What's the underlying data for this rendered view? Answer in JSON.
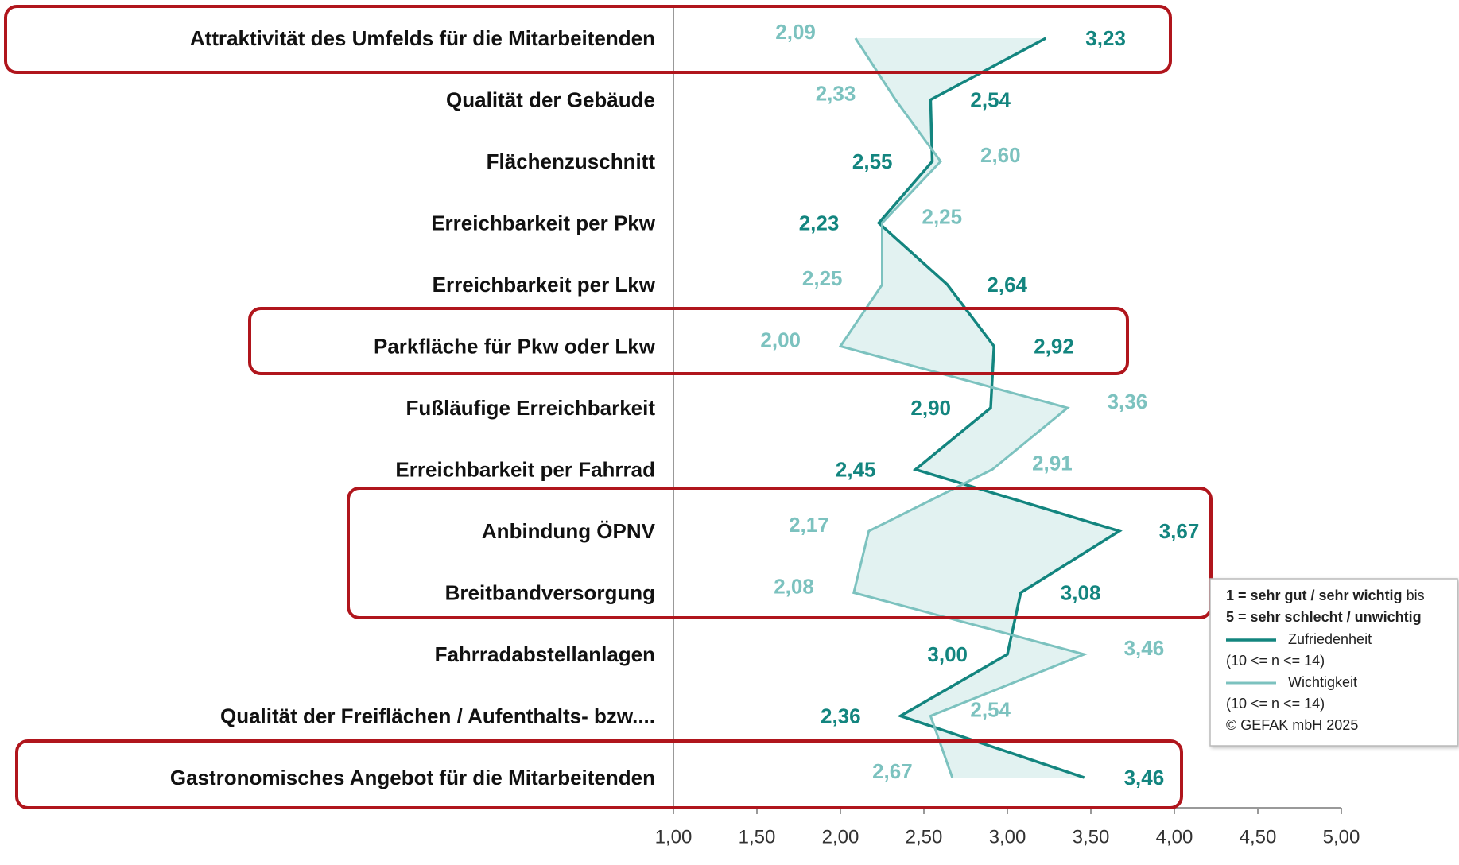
{
  "chart_data": {
    "type": "line",
    "categories": [
      "Attraktivität des Umfelds für die Mitarbeitenden",
      "Qualität der Gebäude",
      "Flächenzuschnitt",
      "Erreichbarkeit per Pkw",
      "Erreichbarkeit per Lkw",
      "Parkfläche für Pkw oder Lkw",
      "Fußläufige Erreichbarkeit",
      "Erreichbarkeit per Fahrrad",
      "Anbindung ÖPNV",
      "Breitbandversorgung",
      "Fahrradabstellanlagen",
      "Qualität der Freiflächen / Aufenthalts- bzw....",
      "Gastronomisches Angebot für die Mitarbeitenden"
    ],
    "series": [
      {
        "name": "Zufriedenheit",
        "color": "#13857f",
        "values": [
          3.23,
          2.54,
          2.55,
          2.23,
          2.64,
          2.92,
          2.9,
          2.45,
          3.67,
          3.08,
          3.0,
          2.36,
          3.46
        ],
        "value_labels": [
          "3,23",
          "2,54",
          "2,55",
          "2,23",
          "2,64",
          "2,92",
          "2,90",
          "2,45",
          "3,67",
          "3,08",
          "3,00",
          "2,36",
          "3,46"
        ]
      },
      {
        "name": "Wichtigkeit",
        "color": "#7cc2bf",
        "values": [
          2.09,
          2.33,
          2.6,
          2.25,
          2.25,
          2.0,
          3.36,
          2.91,
          2.17,
          2.08,
          3.46,
          2.54,
          2.67
        ],
        "value_labels": [
          "2,09",
          "2,33",
          "2,60",
          "2,25",
          "2,25",
          "2,00",
          "3,36",
          "2,91",
          "2,17",
          "2,08",
          "3,46",
          "2,54",
          "2,67"
        ]
      }
    ],
    "xlim": [
      1,
      5
    ],
    "xticks": [
      {
        "value": 1,
        "label": "1,00"
      },
      {
        "value": 1.5,
        "label": "1,50"
      },
      {
        "value": 2,
        "label": "2,00"
      },
      {
        "value": 2.5,
        "label": "2,50"
      },
      {
        "value": 3,
        "label": "3,00"
      },
      {
        "value": 3.5,
        "label": "3,50"
      },
      {
        "value": 4,
        "label": "4,00"
      },
      {
        "value": 4.5,
        "label": "4,50"
      },
      {
        "value": 5,
        "label": "5,00"
      }
    ],
    "annotations": [
      "1 = sehr gut / sehr wichtig",
      "bis",
      "5 = sehr schlecht / unwichtig",
      "(10 <= n <= 14)",
      "(10 <= n <= 14)",
      "© GEFAK mbH 2025"
    ]
  }
}
